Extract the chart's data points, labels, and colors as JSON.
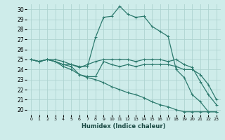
{
  "xlabel": "Humidex (Indice chaleur)",
  "background_color": "#ceecea",
  "grid_color": "#aed4d0",
  "line_color": "#2d7a6e",
  "xlim": [
    -0.5,
    23.5
  ],
  "ylim": [
    19.5,
    30.5
  ],
  "yticks": [
    20,
    21,
    22,
    23,
    24,
    25,
    26,
    27,
    28,
    29,
    30
  ],
  "xticks": [
    0,
    1,
    2,
    3,
    4,
    5,
    6,
    7,
    8,
    9,
    10,
    11,
    12,
    13,
    14,
    15,
    16,
    17,
    18,
    19,
    20,
    21,
    22,
    23
  ],
  "lines": [
    {
      "x": [
        0,
        1,
        2,
        3,
        4,
        5,
        6,
        7,
        8,
        9,
        10,
        11,
        12,
        13,
        14,
        15,
        16,
        17,
        18,
        19,
        20,
        21,
        22,
        23
      ],
      "y": [
        25.0,
        24.8,
        25.0,
        25.0,
        24.8,
        24.5,
        24.3,
        24.3,
        27.2,
        29.2,
        29.3,
        30.3,
        29.5,
        29.2,
        29.3,
        28.3,
        27.8,
        27.3,
        24.0,
        23.2,
        21.5,
        20.8,
        19.8,
        19.8
      ]
    },
    {
      "x": [
        0,
        1,
        2,
        3,
        4,
        5,
        6,
        7,
        8,
        9,
        10,
        11,
        12,
        13,
        14,
        15,
        16,
        17,
        18,
        19,
        20,
        21,
        22,
        23
      ],
      "y": [
        25.0,
        24.8,
        25.0,
        24.8,
        24.5,
        24.5,
        24.2,
        24.5,
        24.8,
        25.0,
        25.0,
        25.0,
        25.0,
        24.8,
        25.0,
        25.0,
        25.0,
        24.8,
        25.0,
        24.5,
        24.2,
        22.8,
        21.5,
        20.5
      ]
    },
    {
      "x": [
        0,
        1,
        2,
        3,
        4,
        5,
        6,
        7,
        8,
        9,
        10,
        11,
        12,
        13,
        14,
        15,
        16,
        17,
        18,
        19,
        20,
        21,
        22,
        23
      ],
      "y": [
        25.0,
        24.8,
        25.0,
        24.8,
        24.5,
        24.3,
        23.5,
        23.3,
        23.3,
        24.8,
        24.5,
        24.3,
        24.5,
        24.3,
        24.5,
        24.5,
        24.5,
        24.5,
        24.3,
        24.0,
        24.0,
        23.5,
        22.5,
        21.0
      ]
    },
    {
      "x": [
        0,
        1,
        2,
        3,
        4,
        5,
        6,
        7,
        8,
        9,
        10,
        11,
        12,
        13,
        14,
        15,
        16,
        17,
        18,
        19,
        20,
        21,
        22,
        23
      ],
      "y": [
        25.0,
        24.8,
        25.0,
        24.8,
        24.3,
        24.0,
        23.5,
        23.2,
        23.0,
        22.7,
        22.3,
        22.0,
        21.7,
        21.5,
        21.2,
        20.8,
        20.5,
        20.3,
        20.0,
        19.8,
        19.8,
        19.8,
        19.8,
        19.8
      ]
    }
  ]
}
